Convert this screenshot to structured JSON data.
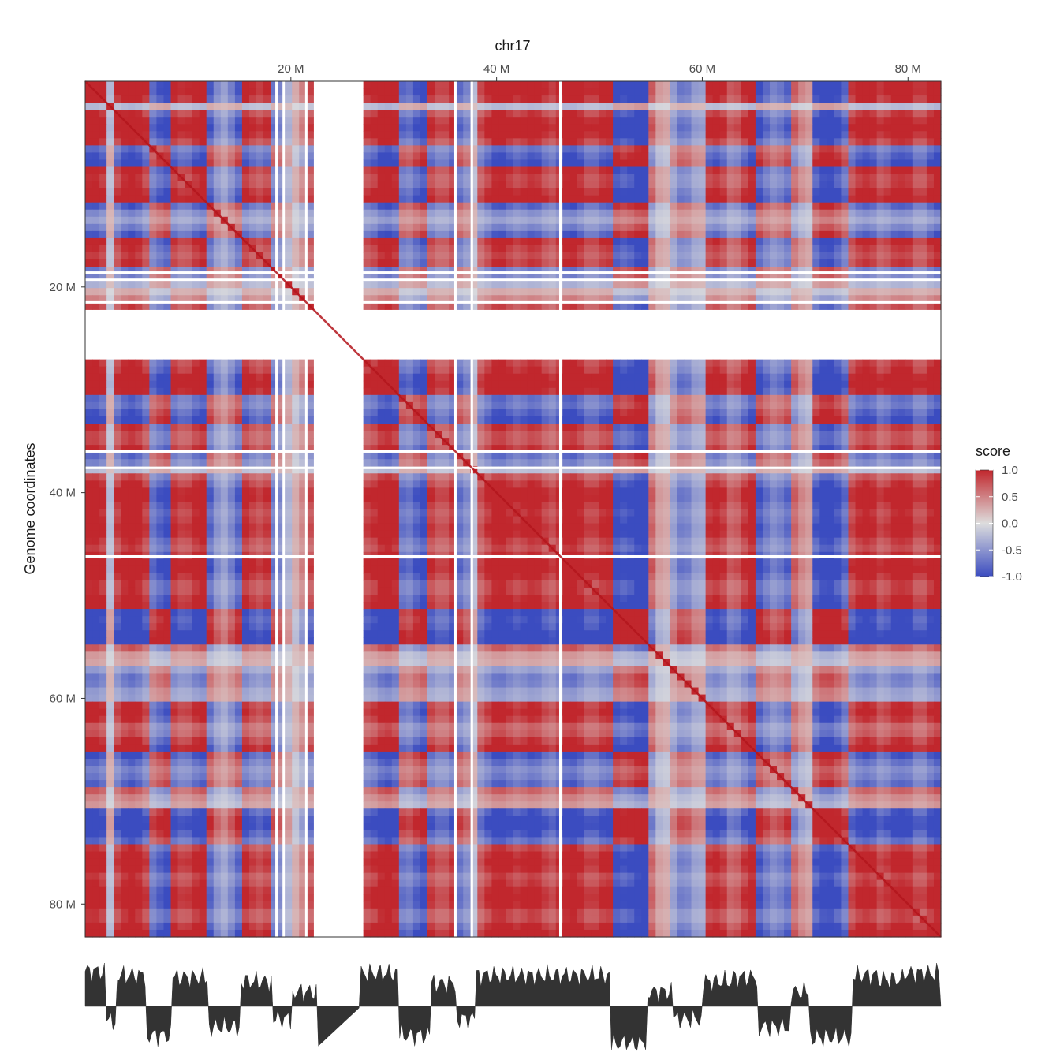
{
  "chart_data": {
    "type": "heatmap",
    "title": "chr17",
    "ylabel": "Genome coordinates",
    "xlabel": "",
    "units": "Mb",
    "axis_range": [
      0,
      83.2
    ],
    "x_ticks": [
      {
        "value": 20,
        "label": "20 M"
      },
      {
        "value": 40,
        "label": "40 M"
      },
      {
        "value": 60,
        "label": "60 M"
      },
      {
        "value": 80,
        "label": "80 M"
      }
    ],
    "y_ticks": [
      {
        "value": 20,
        "label": "20 M"
      },
      {
        "value": 40,
        "label": "40 M"
      },
      {
        "value": 60,
        "label": "60 M"
      },
      {
        "value": 80,
        "label": "80 M"
      }
    ],
    "masked_region": [
      22.5,
      26.8
    ],
    "gap_lines": [
      18.6,
      19.3,
      21.5,
      36.0,
      37.6,
      46.2
    ],
    "compartment_segments": [
      {
        "start": 0.0,
        "end": 2.0,
        "sign": 1,
        "strength": 0.85
      },
      {
        "start": 2.0,
        "end": 3.0,
        "sign": -1,
        "strength": 0.35
      },
      {
        "start": 3.0,
        "end": 6.0,
        "sign": 1,
        "strength": 0.75
      },
      {
        "start": 6.0,
        "end": 8.5,
        "sign": -1,
        "strength": 0.7
      },
      {
        "start": 8.5,
        "end": 12.0,
        "sign": 1,
        "strength": 0.7
      },
      {
        "start": 12.0,
        "end": 15.0,
        "sign": -1,
        "strength": 0.5
      },
      {
        "start": 15.0,
        "end": 18.3,
        "sign": 1,
        "strength": 0.6
      },
      {
        "start": 18.3,
        "end": 20.0,
        "sign": -1,
        "strength": 0.3
      },
      {
        "start": 20.0,
        "end": 22.5,
        "sign": 1,
        "strength": 0.35
      },
      {
        "start": 26.8,
        "end": 30.5,
        "sign": 1,
        "strength": 0.8
      },
      {
        "start": 30.5,
        "end": 33.5,
        "sign": -1,
        "strength": 0.7
      },
      {
        "start": 33.5,
        "end": 36.0,
        "sign": 1,
        "strength": 0.55
      },
      {
        "start": 36.0,
        "end": 38.0,
        "sign": -1,
        "strength": 0.3
      },
      {
        "start": 38.0,
        "end": 51.0,
        "sign": 1,
        "strength": 0.75
      },
      {
        "start": 51.0,
        "end": 54.5,
        "sign": -1,
        "strength": 0.9
      },
      {
        "start": 54.5,
        "end": 57.0,
        "sign": 1,
        "strength": 0.35
      },
      {
        "start": 57.0,
        "end": 60.0,
        "sign": -1,
        "strength": 0.3
      },
      {
        "start": 60.0,
        "end": 63.0,
        "sign": 1,
        "strength": 0.6
      },
      {
        "start": 63.0,
        "end": 65.5,
        "sign": 1,
        "strength": 0.7
      },
      {
        "start": 65.5,
        "end": 68.5,
        "sign": -1,
        "strength": 0.5
      },
      {
        "start": 68.5,
        "end": 70.5,
        "sign": 1,
        "strength": 0.35
      },
      {
        "start": 70.5,
        "end": 74.5,
        "sign": -1,
        "strength": 0.75
      },
      {
        "start": 74.5,
        "end": 77.0,
        "sign": 1,
        "strength": 0.75
      },
      {
        "start": 77.0,
        "end": 79.5,
        "sign": 1,
        "strength": 0.65
      },
      {
        "start": 79.5,
        "end": 83.2,
        "sign": 1,
        "strength": 0.8
      }
    ],
    "colorbar": {
      "title": "score",
      "range": [
        -1.0,
        1.0
      ],
      "ticks": [
        {
          "value": 1.0,
          "label": "1.0"
        },
        {
          "value": 0.5,
          "label": "0.5"
        },
        {
          "value": 0.0,
          "label": "0.0"
        },
        {
          "value": -0.5,
          "label": "-0.5"
        },
        {
          "value": -1.0,
          "label": "-1.0"
        }
      ],
      "colors": {
        "low": "#3b4cc0",
        "mid": "#dddddd",
        "high": "#c1272d"
      }
    },
    "track_color": "#333333"
  }
}
